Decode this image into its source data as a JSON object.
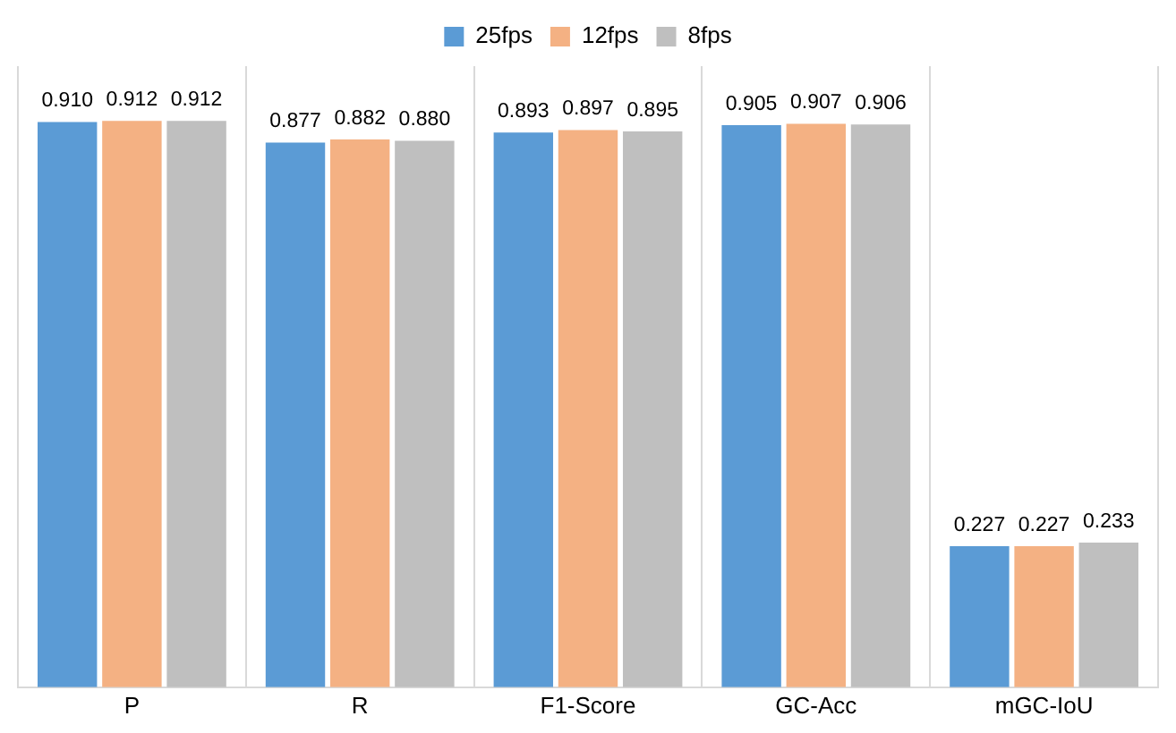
{
  "chart_data": {
    "type": "bar",
    "categories": [
      "P",
      "R",
      "F1-Score",
      "GC-Acc",
      "mGC-IoU"
    ],
    "series": [
      {
        "name": "25fps",
        "color": "#5b9bd5",
        "values": [
          0.91,
          0.877,
          0.893,
          0.905,
          0.227
        ],
        "value_labels": [
          "0.910",
          "0.877",
          "0.893",
          "0.905",
          "0.227"
        ]
      },
      {
        "name": "12fps",
        "color": "#f4b183",
        "values": [
          0.912,
          0.882,
          0.897,
          0.907,
          0.227
        ],
        "value_labels": [
          "0.912",
          "0.882",
          "0.897",
          "0.907",
          "0.227"
        ]
      },
      {
        "name": "8fps",
        "color": "#bfbfbf",
        "values": [
          0.912,
          0.88,
          0.895,
          0.906,
          0.233
        ],
        "value_labels": [
          "0.912",
          "0.880",
          "0.895",
          "0.906",
          "0.233"
        ]
      }
    ],
    "grid": "x",
    "legend": "top",
    "tick_labels": "x"
  }
}
